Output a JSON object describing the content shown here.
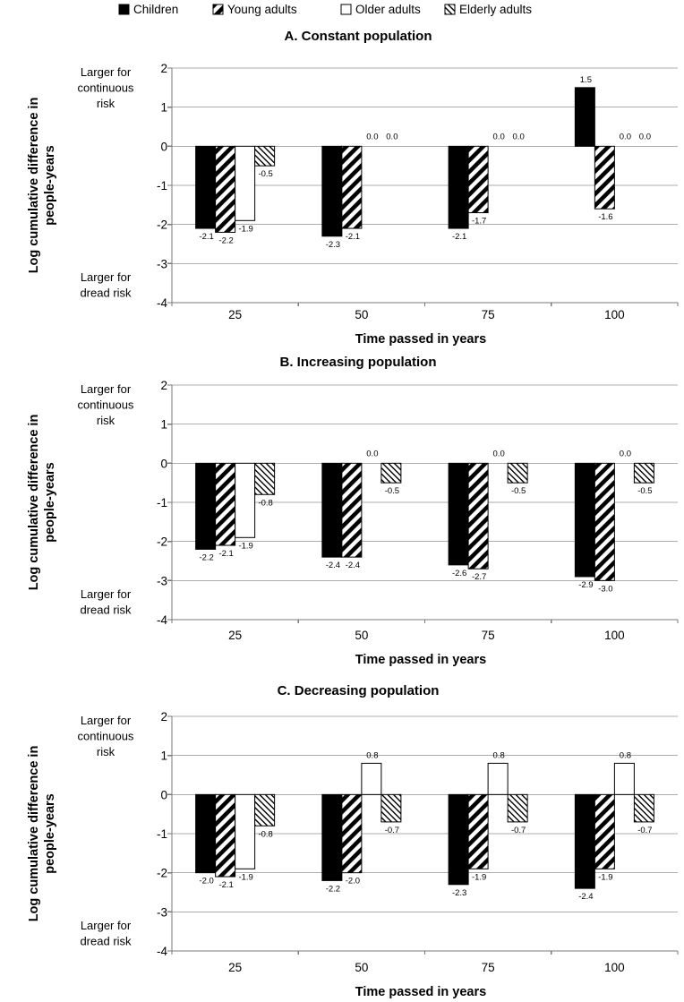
{
  "figure": {
    "legend": {
      "items": [
        {
          "label": "Children",
          "swatch": "solid-black-square"
        },
        {
          "label": "Young adults",
          "swatch": "forward-diagonal-hatch-square"
        },
        {
          "label": "Older adults",
          "swatch": "empty-white-square"
        },
        {
          "label": "Elderly adults",
          "swatch": "back-diagonal-hatch-square"
        }
      ]
    },
    "y_axis_title_lines": [
      "Log cumulative difference in",
      "people-years"
    ],
    "x_axis_title": "Time passed in years",
    "y_tick_labels": [
      "2",
      "1",
      "0",
      "-1",
      "-2",
      "-3",
      "-4"
    ],
    "x_tick_labels": [
      "25",
      "50",
      "75",
      "100"
    ],
    "annotations": {
      "top_lines": [
        "Larger for",
        "continuous",
        "risk"
      ],
      "bottom_lines": [
        "Larger for",
        "dread risk"
      ]
    },
    "colors": {
      "bar_fill": "#000000",
      "bar_stroke": "#000000",
      "grid": "#adadad",
      "axis": "#7a7a7a",
      "text": "#000000",
      "data_label": "#3d3d3d",
      "background": "#ffffff"
    }
  },
  "chart_data": [
    {
      "type": "bar",
      "title": "A. Constant population",
      "categories": [
        25,
        50,
        75,
        100
      ],
      "series": [
        {
          "name": "Children",
          "values": [
            -2.1,
            -2.3,
            -2.1,
            1.5
          ]
        },
        {
          "name": "Young adults",
          "values": [
            -2.2,
            -2.1,
            -1.7,
            -1.6
          ]
        },
        {
          "name": "Older adults",
          "values": [
            -1.9,
            0.0,
            0.0,
            0.0
          ]
        },
        {
          "name": "Elderly adults",
          "values": [
            -0.5,
            0.0,
            0.0,
            0.0
          ]
        }
      ],
      "xlabel": "Time passed in years",
      "ylabel": "Log cumulative difference in people-years",
      "ylim": [
        -4,
        2
      ],
      "grid": true,
      "data_labels": true,
      "legend_position": "top-shared"
    },
    {
      "type": "bar",
      "title": "B. Increasing population",
      "categories": [
        25,
        50,
        75,
        100
      ],
      "series": [
        {
          "name": "Children",
          "values": [
            -2.2,
            -2.4,
            -2.6,
            -2.9
          ]
        },
        {
          "name": "Young adults",
          "values": [
            -2.1,
            -2.4,
            -2.7,
            -3.0
          ]
        },
        {
          "name": "Older adults",
          "values": [
            -1.9,
            0.0,
            0.0,
            0.0
          ]
        },
        {
          "name": "Elderly adults",
          "values": [
            -0.8,
            -0.5,
            -0.5,
            -0.5
          ]
        }
      ],
      "xlabel": "Time passed in years",
      "ylabel": "Log cumulative difference in people-years",
      "ylim": [
        -4,
        2
      ],
      "grid": true,
      "data_labels": true,
      "legend_position": "top-shared"
    },
    {
      "type": "bar",
      "title": "C. Decreasing population",
      "categories": [
        25,
        50,
        75,
        100
      ],
      "series": [
        {
          "name": "Children",
          "values": [
            -2.0,
            -2.2,
            -2.3,
            -2.4
          ]
        },
        {
          "name": "Young adults",
          "values": [
            -2.1,
            -2.0,
            -1.9,
            -1.9
          ]
        },
        {
          "name": "Older adults",
          "values": [
            -1.9,
            0.8,
            0.8,
            0.8
          ]
        },
        {
          "name": "Elderly adults",
          "values": [
            -0.8,
            -0.7,
            -0.7,
            -0.7
          ]
        }
      ],
      "xlabel": "Time passed in years",
      "ylabel": "Log cumulative difference in people-years",
      "ylim": [
        -4,
        2
      ],
      "grid": true,
      "data_labels": true,
      "legend_position": "top-shared"
    }
  ]
}
